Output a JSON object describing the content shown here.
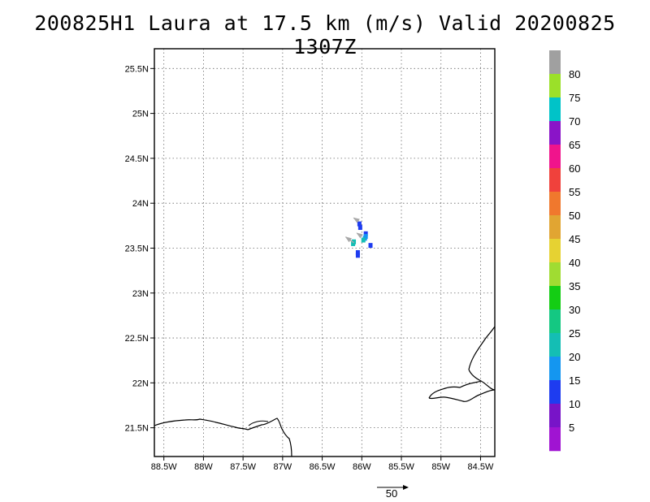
{
  "title": "200825H1 Laura at 17.5 km (m/s) Valid 20200825 1307Z",
  "map": {
    "lat_labels": [
      "25.5N",
      "25N",
      "24.5N",
      "24N",
      "23.5N",
      "23N",
      "22.5N",
      "22N",
      "21.5N"
    ],
    "lon_labels": [
      "88.5W",
      "88W",
      "87.5W",
      "87W",
      "86.5W",
      "86W",
      "85.5W",
      "85W",
      "84.5W"
    ],
    "lat_values": [
      25.5,
      25.0,
      24.5,
      24.0,
      23.5,
      23.0,
      22.5,
      22.0,
      21.5
    ],
    "lon_values": [
      -88.5,
      -88.0,
      -87.5,
      -87.0,
      -86.5,
      -86.0,
      -85.5,
      -85.0,
      -84.5
    ],
    "lat_range": [
      21.18,
      25.72
    ],
    "lon_range": [
      -88.62,
      -84.32
    ],
    "grid": "dotted",
    "coast_color": "#000000"
  },
  "wind_obs": [
    {
      "lat": 23.77,
      "lon": -86.03,
      "speed": 10
    },
    {
      "lat": 23.73,
      "lon": -86.02,
      "speed": 10
    },
    {
      "lat": 23.66,
      "lon": -85.95,
      "speed": 12
    },
    {
      "lat": 23.63,
      "lon": -85.95,
      "speed": 15
    },
    {
      "lat": 23.61,
      "lon": -85.96,
      "speed": 18
    },
    {
      "lat": 23.59,
      "lon": -85.98,
      "speed": 20
    },
    {
      "lat": 23.57,
      "lon": -86.1,
      "speed": 20
    },
    {
      "lat": 23.55,
      "lon": -86.11,
      "speed": 22
    },
    {
      "lat": 23.53,
      "lon": -85.89,
      "speed": 10
    },
    {
      "lat": 23.45,
      "lon": -86.05,
      "speed": 12
    },
    {
      "lat": 23.42,
      "lon": -86.05,
      "speed": 10
    }
  ],
  "vectors": [
    {
      "lat": 23.8,
      "lon": -86.04,
      "u": -6,
      "v": 4
    },
    {
      "lat": 23.63,
      "lon": -86.0,
      "u": -6,
      "v": 4
    },
    {
      "lat": 23.56,
      "lon": -86.1,
      "u": -10,
      "v": 7
    }
  ],
  "colorbar": {
    "labels": [
      "80",
      "75",
      "70",
      "65",
      "60",
      "55",
      "50",
      "45",
      "40",
      "35",
      "30",
      "25",
      "20",
      "15",
      "10",
      "5"
    ],
    "colors": [
      "#a0a0a0",
      "#9be029",
      "#00c3c8",
      "#8a14c8",
      "#f0148c",
      "#f0413c",
      "#f0782d",
      "#e1a532",
      "#e6d232",
      "#a0dc32",
      "#14cd14",
      "#14c882",
      "#14beb4",
      "#1496f0",
      "#1e3cf0",
      "#7814c8",
      "#a014d2"
    ]
  },
  "reference_vector": {
    "label": "50",
    "value": 50
  }
}
